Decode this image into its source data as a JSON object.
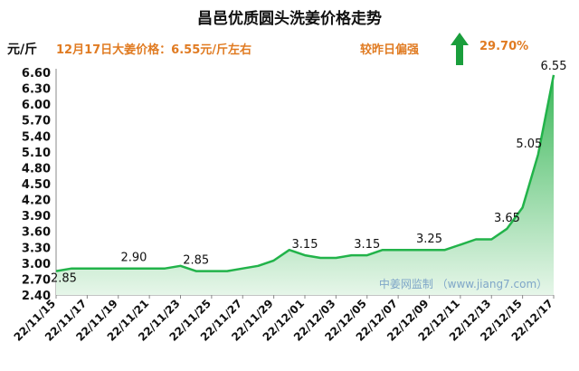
{
  "colors": {
    "line": "#22b34a",
    "fill_top": "#3cb85a",
    "fill_bottom": "#e6f6e9",
    "note": "#e07b22",
    "arrow": "#1a9e3c",
    "watermark": "#7fa6c8"
  },
  "icons": {
    "trend": "arrow-up-icon"
  },
  "header": {
    "title": "昌邑优质圆头洗姜价格走势",
    "note_left": "12月17日大姜价格：6.55元/斤左右",
    "note_mid": "较昨日偏强",
    "note_right": "29.70%",
    "watermark": "中姜网监制 （www.jiang7.com）"
  },
  "chart_data": {
    "type": "area",
    "title": "昌邑优质圆头洗姜价格走势",
    "xlabel": "",
    "ylabel": "元/斤",
    "ylim": [
      2.4,
      6.6
    ],
    "yticks": [
      "6.60",
      "6.30",
      "6.00",
      "5.70",
      "5.40",
      "5.10",
      "4.80",
      "4.50",
      "4.20",
      "3.90",
      "3.60",
      "3.30",
      "3.00",
      "2.70",
      "2.40"
    ],
    "x_tick_labels": [
      "22/11/15",
      "22/11/17",
      "22/11/19",
      "22/11/21",
      "22/11/23",
      "22/11/25",
      "22/11/27",
      "22/11/29",
      "22/12/01",
      "22/12/03",
      "22/12/05",
      "22/12/07",
      "22/12/09",
      "22/12/11",
      "22/12/13",
      "22/12/15",
      "22/12/17"
    ],
    "x": [
      "22/11/15",
      "22/11/16",
      "22/11/17",
      "22/11/18",
      "22/11/19",
      "22/11/20",
      "22/11/21",
      "22/11/22",
      "22/11/23",
      "22/11/24",
      "22/11/25",
      "22/11/26",
      "22/11/27",
      "22/11/28",
      "22/11/29",
      "22/11/30",
      "22/12/01",
      "22/12/02",
      "22/12/03",
      "22/12/04",
      "22/12/05",
      "22/12/06",
      "22/12/07",
      "22/12/08",
      "22/12/09",
      "22/12/10",
      "22/12/11",
      "22/12/12",
      "22/12/13",
      "22/12/14",
      "22/12/15",
      "22/12/16",
      "22/12/17"
    ],
    "values": [
      2.85,
      2.9,
      2.9,
      2.9,
      2.9,
      2.9,
      2.9,
      2.9,
      2.95,
      2.85,
      2.85,
      2.85,
      2.9,
      2.95,
      3.05,
      3.25,
      3.15,
      3.1,
      3.1,
      3.15,
      3.15,
      3.25,
      3.25,
      3.25,
      3.25,
      3.25,
      3.35,
      3.45,
      3.45,
      3.65,
      4.05,
      5.05,
      6.55
    ],
    "data_labels": [
      {
        "x": "22/11/15",
        "text": "2.85"
      },
      {
        "x": "22/11/20",
        "text": "2.90"
      },
      {
        "x": "22/11/24",
        "text": "2.85"
      },
      {
        "x": "22/12/01",
        "text": "3.15"
      },
      {
        "x": "22/12/05",
        "text": "3.15"
      },
      {
        "x": "22/12/09",
        "text": "3.25"
      },
      {
        "x": "22/12/14",
        "text": "3.65"
      },
      {
        "x": "22/12/16",
        "text": "5.05"
      },
      {
        "x": "22/12/17",
        "text": "6.55"
      }
    ],
    "grid": false,
    "legend": "none"
  }
}
